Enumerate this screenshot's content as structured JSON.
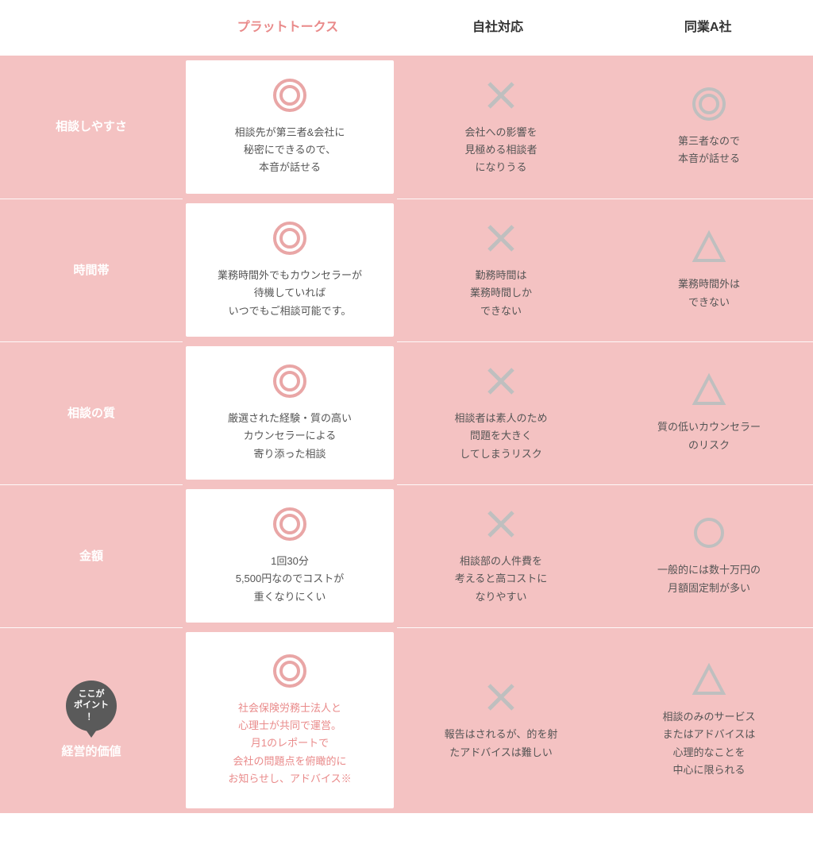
{
  "colors": {
    "pink_bg": "#f4c2c2",
    "pink_accent": "#e98a8a",
    "gray_symbol": "#bfbfbf",
    "gray_badge": "#5a5a5a",
    "white": "#ffffff",
    "text": "#555555"
  },
  "headers": {
    "featured": "プラットトークス",
    "col2": "自社対応",
    "col3": "同業A社"
  },
  "point_badge": "ここが\nポイント\n！",
  "rows": [
    {
      "label": "相談しやすさ",
      "featured": {
        "mark": "double-circle",
        "desc": "相談先が第三者&会社に\n秘密にできるので、\n本音が話せる"
      },
      "col2": {
        "mark": "cross",
        "desc": "会社への影響を\n見極める相談者\nになりうる"
      },
      "col3": {
        "mark": "double-circle-gray",
        "desc": "第三者なので\n本音が話せる"
      }
    },
    {
      "label": "時間帯",
      "featured": {
        "mark": "double-circle",
        "desc": "業務時間外でもカウンセラーが\n待機していれば\nいつでもご相談可能です。"
      },
      "col2": {
        "mark": "cross",
        "desc": "勤務時間は\n業務時間しか\nできない"
      },
      "col3": {
        "mark": "triangle",
        "desc": "業務時間外は\nできない"
      }
    },
    {
      "label": "相談の質",
      "featured": {
        "mark": "double-circle",
        "desc": "厳選された経験・質の高い\nカウンセラーによる\n寄り添った相談"
      },
      "col2": {
        "mark": "cross",
        "desc": "相談者は素人のため\n問題を大きく\nしてしまうリスク"
      },
      "col3": {
        "mark": "triangle",
        "desc": "質の低いカウンセラー\nのリスク"
      }
    },
    {
      "label": "金額",
      "featured": {
        "mark": "double-circle",
        "desc": "1回30分\n5,500円なのでコストが\n重くなりにくい"
      },
      "col2": {
        "mark": "cross",
        "desc": "相談部の人件費を\n考えると高コストに\nなりやすい"
      },
      "col3": {
        "mark": "circle-gray",
        "desc": "一般的には数十万円の\n月額固定制が多い"
      }
    },
    {
      "label": "経営的価値",
      "point": true,
      "featured": {
        "mark": "double-circle",
        "desc": "社会保険労務士法人と\n心理士が共同で運営。\n月1のレポートで\n会社の問題点を俯瞰的に\nお知らせし、アドバイス※",
        "highlight": true
      },
      "col2": {
        "mark": "cross",
        "desc": "報告はされるが、的を射\nたアドバイスは難しい"
      },
      "col3": {
        "mark": "triangle",
        "desc": "相談のみのサービス\nまたはアドバイスは\n心理的なことを\n中心に限られる"
      }
    }
  ]
}
